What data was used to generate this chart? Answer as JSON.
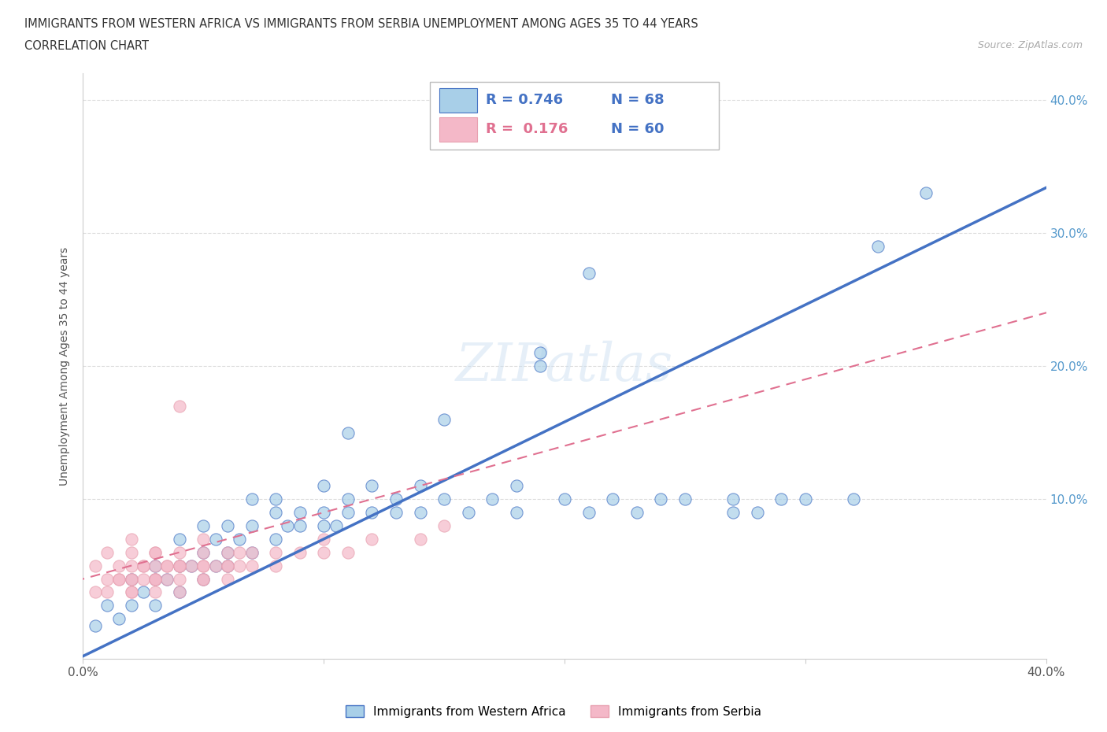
{
  "title_line1": "IMMIGRANTS FROM WESTERN AFRICA VS IMMIGRANTS FROM SERBIA UNEMPLOYMENT AMONG AGES 35 TO 44 YEARS",
  "title_line2": "CORRELATION CHART",
  "source": "Source: ZipAtlas.com",
  "ylabel": "Unemployment Among Ages 35 to 44 years",
  "xlim": [
    0.0,
    0.4
  ],
  "ylim": [
    -0.02,
    0.42
  ],
  "legend1_label": "Immigrants from Western Africa",
  "legend2_label": "Immigrants from Serbia",
  "R1": 0.746,
  "N1": 68,
  "R2": 0.176,
  "N2": 60,
  "color_blue": "#a8cfe8",
  "color_pink": "#f4b8c8",
  "color_blue_dark": "#4472c4",
  "color_pink_dark": "#e8a0b0",
  "color_blue_text": "#4472c4",
  "color_pink_text": "#e07090",
  "watermark": "ZIPatlas",
  "blue_x": [
    0.005,
    0.01,
    0.015,
    0.02,
    0.02,
    0.025,
    0.03,
    0.03,
    0.03,
    0.035,
    0.04,
    0.04,
    0.04,
    0.045,
    0.05,
    0.05,
    0.05,
    0.055,
    0.055,
    0.06,
    0.06,
    0.06,
    0.065,
    0.07,
    0.07,
    0.07,
    0.08,
    0.08,
    0.08,
    0.085,
    0.09,
    0.09,
    0.1,
    0.1,
    0.1,
    0.105,
    0.11,
    0.11,
    0.12,
    0.12,
    0.13,
    0.13,
    0.14,
    0.14,
    0.15,
    0.15,
    0.16,
    0.17,
    0.18,
    0.18,
    0.19,
    0.2,
    0.21,
    0.22,
    0.23,
    0.24,
    0.25,
    0.27,
    0.28,
    0.29,
    0.3,
    0.32,
    0.33,
    0.35,
    0.11,
    0.19,
    0.21,
    0.27
  ],
  "blue_y": [
    0.005,
    0.02,
    0.01,
    0.02,
    0.04,
    0.03,
    0.02,
    0.04,
    0.05,
    0.04,
    0.03,
    0.05,
    0.07,
    0.05,
    0.04,
    0.06,
    0.08,
    0.05,
    0.07,
    0.05,
    0.06,
    0.08,
    0.07,
    0.06,
    0.08,
    0.1,
    0.07,
    0.09,
    0.1,
    0.08,
    0.08,
    0.09,
    0.08,
    0.09,
    0.11,
    0.08,
    0.09,
    0.1,
    0.09,
    0.11,
    0.09,
    0.1,
    0.09,
    0.11,
    0.1,
    0.16,
    0.09,
    0.1,
    0.09,
    0.11,
    0.2,
    0.1,
    0.09,
    0.1,
    0.09,
    0.1,
    0.1,
    0.1,
    0.09,
    0.1,
    0.1,
    0.1,
    0.29,
    0.33,
    0.15,
    0.21,
    0.27,
    0.09
  ],
  "pink_x": [
    0.005,
    0.005,
    0.01,
    0.01,
    0.01,
    0.015,
    0.015,
    0.02,
    0.02,
    0.02,
    0.02,
    0.02,
    0.02,
    0.025,
    0.025,
    0.03,
    0.03,
    0.03,
    0.03,
    0.03,
    0.035,
    0.035,
    0.04,
    0.04,
    0.04,
    0.04,
    0.04,
    0.045,
    0.05,
    0.05,
    0.05,
    0.05,
    0.05,
    0.055,
    0.06,
    0.06,
    0.06,
    0.065,
    0.065,
    0.07,
    0.07,
    0.08,
    0.08,
    0.09,
    0.1,
    0.1,
    0.11,
    0.12,
    0.14,
    0.15,
    0.02,
    0.03,
    0.04,
    0.05,
    0.06,
    0.015,
    0.025,
    0.03,
    0.035,
    0.04
  ],
  "pink_y": [
    0.03,
    0.05,
    0.03,
    0.04,
    0.06,
    0.04,
    0.05,
    0.03,
    0.04,
    0.04,
    0.05,
    0.06,
    0.07,
    0.04,
    0.05,
    0.03,
    0.04,
    0.05,
    0.06,
    0.06,
    0.04,
    0.05,
    0.03,
    0.04,
    0.05,
    0.06,
    0.17,
    0.05,
    0.04,
    0.05,
    0.05,
    0.06,
    0.07,
    0.05,
    0.04,
    0.05,
    0.06,
    0.05,
    0.06,
    0.05,
    0.06,
    0.05,
    0.06,
    0.06,
    0.06,
    0.07,
    0.06,
    0.07,
    0.07,
    0.08,
    0.03,
    0.04,
    0.05,
    0.04,
    0.05,
    0.04,
    0.05,
    0.04,
    0.05,
    0.05
  ]
}
